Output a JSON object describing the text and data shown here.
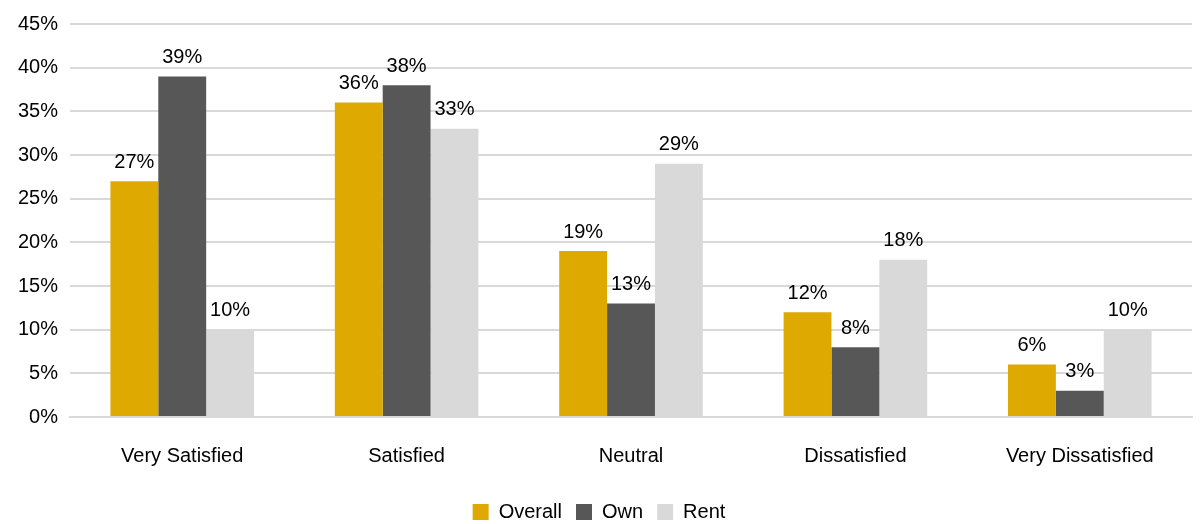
{
  "chart_data": {
    "type": "bar",
    "categories": [
      "Very Satisfied",
      "Satisfied",
      "Neutral",
      "Dissatisfied",
      "Very Dissatisfied"
    ],
    "series": [
      {
        "name": "Overall",
        "color": "#dea900",
        "values": [
          27,
          36,
          19,
          12,
          6
        ],
        "value_labels": [
          "27%",
          "36%",
          "19%",
          "12%",
          "6%"
        ]
      },
      {
        "name": "Own",
        "color": "#575757",
        "values": [
          39,
          38,
          13,
          8,
          3
        ],
        "value_labels": [
          "39%",
          "38%",
          "13%",
          "8%",
          "3%"
        ]
      },
      {
        "name": "Rent",
        "color": "#d9d9d9",
        "values": [
          10,
          33,
          29,
          18,
          10
        ],
        "value_labels": [
          "10%",
          "33%",
          "29%",
          "18%",
          "10%"
        ]
      }
    ],
    "ylim": [
      0,
      45
    ],
    "yticks": [
      {
        "value": 0,
        "label": "0%"
      },
      {
        "value": 5,
        "label": "5%"
      },
      {
        "value": 10,
        "label": "10%"
      },
      {
        "value": 15,
        "label": "15%"
      },
      {
        "value": 20,
        "label": "20%"
      },
      {
        "value": 25,
        "label": "25%"
      },
      {
        "value": 30,
        "label": "30%"
      },
      {
        "value": 35,
        "label": "35%"
      },
      {
        "value": 40,
        "label": "40%"
      },
      {
        "value": 45,
        "label": "45%"
      }
    ],
    "grid": "y",
    "legend": "bottom"
  }
}
